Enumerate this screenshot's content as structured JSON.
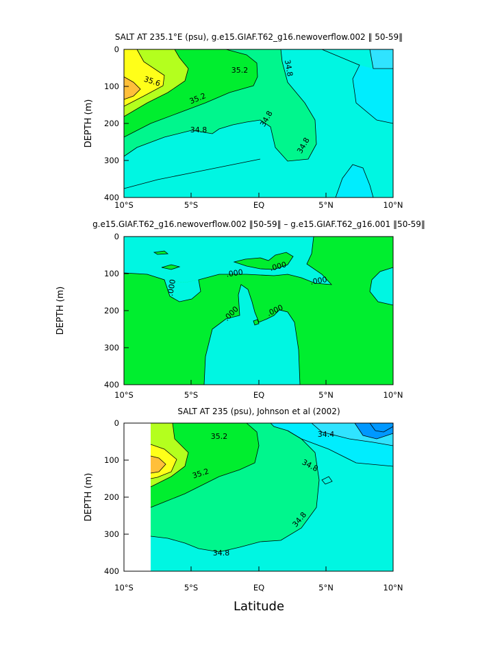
{
  "colors": {
    "orange": "#ffbf3a",
    "yellow": "#ffff19",
    "yellowgreen": "#b4ff1e",
    "green": "#00ee2f",
    "seagreen": "#00f68d",
    "aqua": "#00f6e2",
    "cyan": "#00edfe",
    "lightblue": "#30e3ff",
    "blue": "#0098ff"
  },
  "chart_data": [
    {
      "type": "heatmap",
      "title": "SALT AT 235.1°E (psu), g.e15.GIAF.T62_g16.newoverflow.002 ‖ 50-59‖",
      "ylabel": "DEPTH (m)",
      "xlabel": "",
      "xlim": [
        -10,
        10
      ],
      "ylim": [
        400,
        0
      ],
      "x_tick_labels": [
        "10°S",
        "5°S",
        "EQ",
        "5°N",
        "10°N"
      ],
      "y_tick_labels": [
        "0",
        "100",
        "200",
        "300",
        "400"
      ],
      "contour_labels": [
        "35.6",
        "35.2",
        "35.2",
        "34.8",
        "34.8",
        "34.8",
        "34.8"
      ]
    },
    {
      "type": "heatmap",
      "title": "g.e15.GIAF.T62_g16.newoverflow.002 ‖50-59‖ – g.e15.GIAF.T62_g16.001 ‖50-59‖",
      "ylabel": "DEPTH (m)",
      "xlabel": "",
      "xlim": [
        -10,
        10
      ],
      "ylim": [
        400,
        0
      ],
      "x_tick_labels": [
        "10°S",
        "5°S",
        "EQ",
        "5°N",
        "10°N"
      ],
      "y_tick_labels": [
        "0",
        "100",
        "200",
        "300",
        "400"
      ],
      "contour_labels": [
        ".000",
        ".000",
        ".000",
        ".000",
        ".000",
        ".000"
      ]
    },
    {
      "type": "heatmap",
      "title": "SALT AT 235 (psu), Johnson et al (2002)",
      "ylabel": "DEPTH (m)",
      "xlabel": "Latitude",
      "xlim": [
        -10,
        10
      ],
      "ylim": [
        400,
        0
      ],
      "x_tick_labels": [
        "10°S",
        "5°S",
        "EQ",
        "5°N",
        "10°N"
      ],
      "y_tick_labels": [
        "0",
        "100",
        "200",
        "300",
        "400"
      ],
      "contour_labels": [
        "35.2",
        "35.2",
        "34.4",
        "34.8",
        "34.8",
        "34.8"
      ]
    }
  ]
}
